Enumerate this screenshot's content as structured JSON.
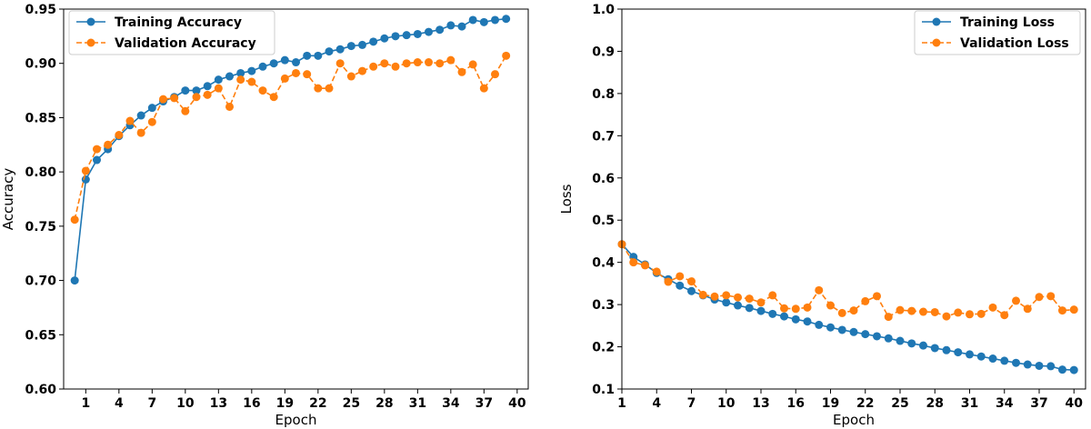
{
  "chart_data": [
    {
      "type": "line",
      "xlabel": "Epoch",
      "ylabel": "Accuracy",
      "xlim": [
        -1,
        41
      ],
      "ylim": [
        0.6,
        0.95
      ],
      "xticks": [
        1,
        4,
        7,
        10,
        13,
        16,
        19,
        22,
        25,
        28,
        31,
        34,
        37,
        40
      ],
      "yticks": [
        "0.60",
        "0.65",
        "0.70",
        "0.75",
        "0.80",
        "0.85",
        "0.90",
        "0.95"
      ],
      "grid": false,
      "legend_position": "top-left",
      "x": [
        0,
        1,
        2,
        3,
        4,
        5,
        6,
        7,
        8,
        9,
        10,
        11,
        12,
        13,
        14,
        15,
        16,
        17,
        18,
        19,
        20,
        21,
        22,
        23,
        24,
        25,
        26,
        27,
        28,
        29,
        30,
        31,
        32,
        33,
        34,
        35,
        36,
        37,
        38,
        39
      ],
      "series": [
        {
          "name": "Training Accuracy",
          "color": "#1f77b4",
          "line_style": "solid",
          "values": [
            0.7,
            0.793,
            0.811,
            0.821,
            0.833,
            0.843,
            0.852,
            0.859,
            0.865,
            0.869,
            0.875,
            0.875,
            0.879,
            0.885,
            0.888,
            0.891,
            0.893,
            0.897,
            0.9,
            0.903,
            0.901,
            0.907,
            0.907,
            0.911,
            0.913,
            0.916,
            0.917,
            0.92,
            0.923,
            0.925,
            0.926,
            0.927,
            0.929,
            0.931,
            0.935,
            0.934,
            0.94,
            0.938,
            0.94,
            0.941
          ]
        },
        {
          "name": "Validation Accuracy",
          "color": "#ff7f0e",
          "line_style": "dashed",
          "values": [
            0.756,
            0.801,
            0.821,
            0.825,
            0.834,
            0.847,
            0.836,
            0.846,
            0.867,
            0.868,
            0.856,
            0.869,
            0.871,
            0.877,
            0.86,
            0.885,
            0.883,
            0.875,
            0.869,
            0.886,
            0.891,
            0.89,
            0.877,
            0.877,
            0.9,
            0.888,
            0.893,
            0.897,
            0.9,
            0.897,
            0.9,
            0.901,
            0.901,
            0.9,
            0.903,
            0.892,
            0.899,
            0.877,
            0.89,
            0.907
          ]
        }
      ]
    },
    {
      "type": "line",
      "xlabel": "Epoch",
      "ylabel": "Loss",
      "xlim": [
        1,
        41
      ],
      "ylim": [
        0.1,
        1.0
      ],
      "xticks": [
        1,
        4,
        7,
        10,
        13,
        16,
        19,
        22,
        25,
        28,
        31,
        34,
        37,
        40
      ],
      "yticks": [
        "0.1",
        "0.2",
        "0.3",
        "0.4",
        "0.5",
        "0.6",
        "0.7",
        "0.8",
        "0.9",
        "1.0"
      ],
      "grid": false,
      "legend_position": "top-right",
      "x": [
        1,
        2,
        3,
        4,
        5,
        6,
        7,
        8,
        9,
        10,
        11,
        12,
        13,
        14,
        15,
        16,
        17,
        18,
        19,
        20,
        21,
        22,
        23,
        24,
        25,
        26,
        27,
        28,
        29,
        30,
        31,
        32,
        33,
        34,
        35,
        36,
        37,
        38,
        39,
        40
      ],
      "series": [
        {
          "name": "Training Loss",
          "color": "#1f77b4",
          "line_style": "solid",
          "values": [
            0.443,
            0.413,
            0.395,
            0.375,
            0.36,
            0.345,
            0.332,
            0.322,
            0.312,
            0.305,
            0.298,
            0.292,
            0.285,
            0.278,
            0.272,
            0.265,
            0.26,
            0.252,
            0.246,
            0.24,
            0.235,
            0.23,
            0.225,
            0.22,
            0.214,
            0.208,
            0.203,
            0.197,
            0.192,
            0.187,
            0.182,
            0.177,
            0.172,
            0.167,
            0.162,
            0.158,
            0.155,
            0.154,
            0.146,
            0.145
          ]
        },
        {
          "name": "Validation Loss",
          "color": "#ff7f0e",
          "line_style": "dashed",
          "values": [
            0.443,
            0.4,
            0.393,
            0.378,
            0.354,
            0.367,
            0.355,
            0.323,
            0.319,
            0.322,
            0.317,
            0.314,
            0.305,
            0.322,
            0.291,
            0.29,
            0.293,
            0.334,
            0.298,
            0.28,
            0.286,
            0.308,
            0.32,
            0.271,
            0.287,
            0.285,
            0.283,
            0.282,
            0.272,
            0.281,
            0.277,
            0.278,
            0.293,
            0.275,
            0.309,
            0.29,
            0.318,
            0.32,
            0.286,
            0.288
          ]
        }
      ]
    }
  ]
}
